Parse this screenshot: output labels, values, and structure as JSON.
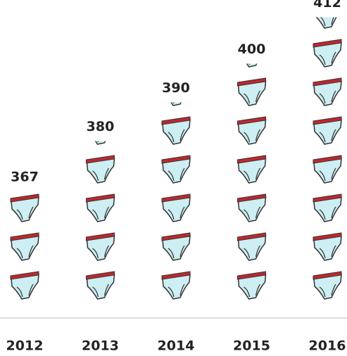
{
  "chart_data": {
    "type": "pictogram",
    "categories": [
      "2012",
      "2013",
      "2014",
      "2015",
      "2016"
    ],
    "values": [
      367,
      380,
      390,
      400,
      412
    ],
    "ylim": [
      337,
      417
    ],
    "color": "#cdeef2"
  }
}
